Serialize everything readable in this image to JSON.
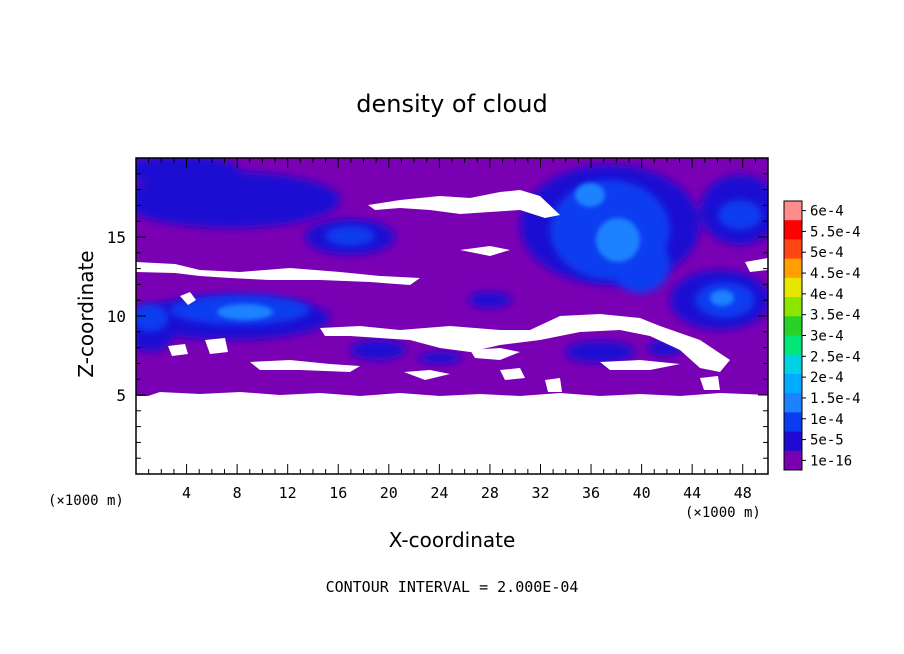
{
  "chart_data": {
    "type": "heatmap",
    "title": "density of cloud",
    "xlabel": "X-coordinate",
    "ylabel": "Z-coordinate",
    "x_unit_left": "(×1000 m)",
    "x_unit_right": "(×1000 m)",
    "xlim": [
      0,
      50
    ],
    "ylim": [
      0,
      20
    ],
    "x_ticks": [
      4,
      8,
      12,
      16,
      20,
      24,
      28,
      32,
      36,
      40,
      44,
      48
    ],
    "y_ticks": [
      5,
      10,
      15
    ],
    "footer": "CONTOUR INTERVAL = 2.000E-04",
    "colorbar": {
      "labels": [
        "1e-16",
        "5e-5",
        "1e-4",
        "1.5e-4",
        "2e-4",
        "2.5e-4",
        "3e-4",
        "3.5e-4",
        "4e-4",
        "4.5e-4",
        "5e-4",
        "5.5e-4",
        "6e-4"
      ],
      "colors": [
        "#7a00b4",
        "#1e0ad2",
        "#0a3cf0",
        "#1e82ff",
        "#00aaff",
        "#00d2e6",
        "#00e678",
        "#28d228",
        "#8ce600",
        "#e6e600",
        "#ffa000",
        "#ff4614",
        "#ff0000",
        "#ff8c8c"
      ]
    },
    "regions": {
      "cloud_layer_z": [
        5,
        20
      ],
      "clear_below_z": [
        0,
        5
      ],
      "high_density_areas": [
        {
          "x": [
            34,
            44
          ],
          "z": [
            12,
            19
          ],
          "level": "1e-4"
        },
        {
          "x": [
            0,
            12
          ],
          "z": [
            8.5,
            11.5
          ],
          "level": "1e-4"
        },
        {
          "x": [
            44,
            50
          ],
          "z": [
            10,
            12.5
          ],
          "level": "1e-4"
        },
        {
          "x": [
            0,
            14
          ],
          "z": [
            16,
            19
          ],
          "level": "5e-5"
        },
        {
          "x": [
            46,
            50
          ],
          "z": [
            16,
            19
          ],
          "level": "5e-5"
        }
      ]
    },
    "grid": false
  }
}
